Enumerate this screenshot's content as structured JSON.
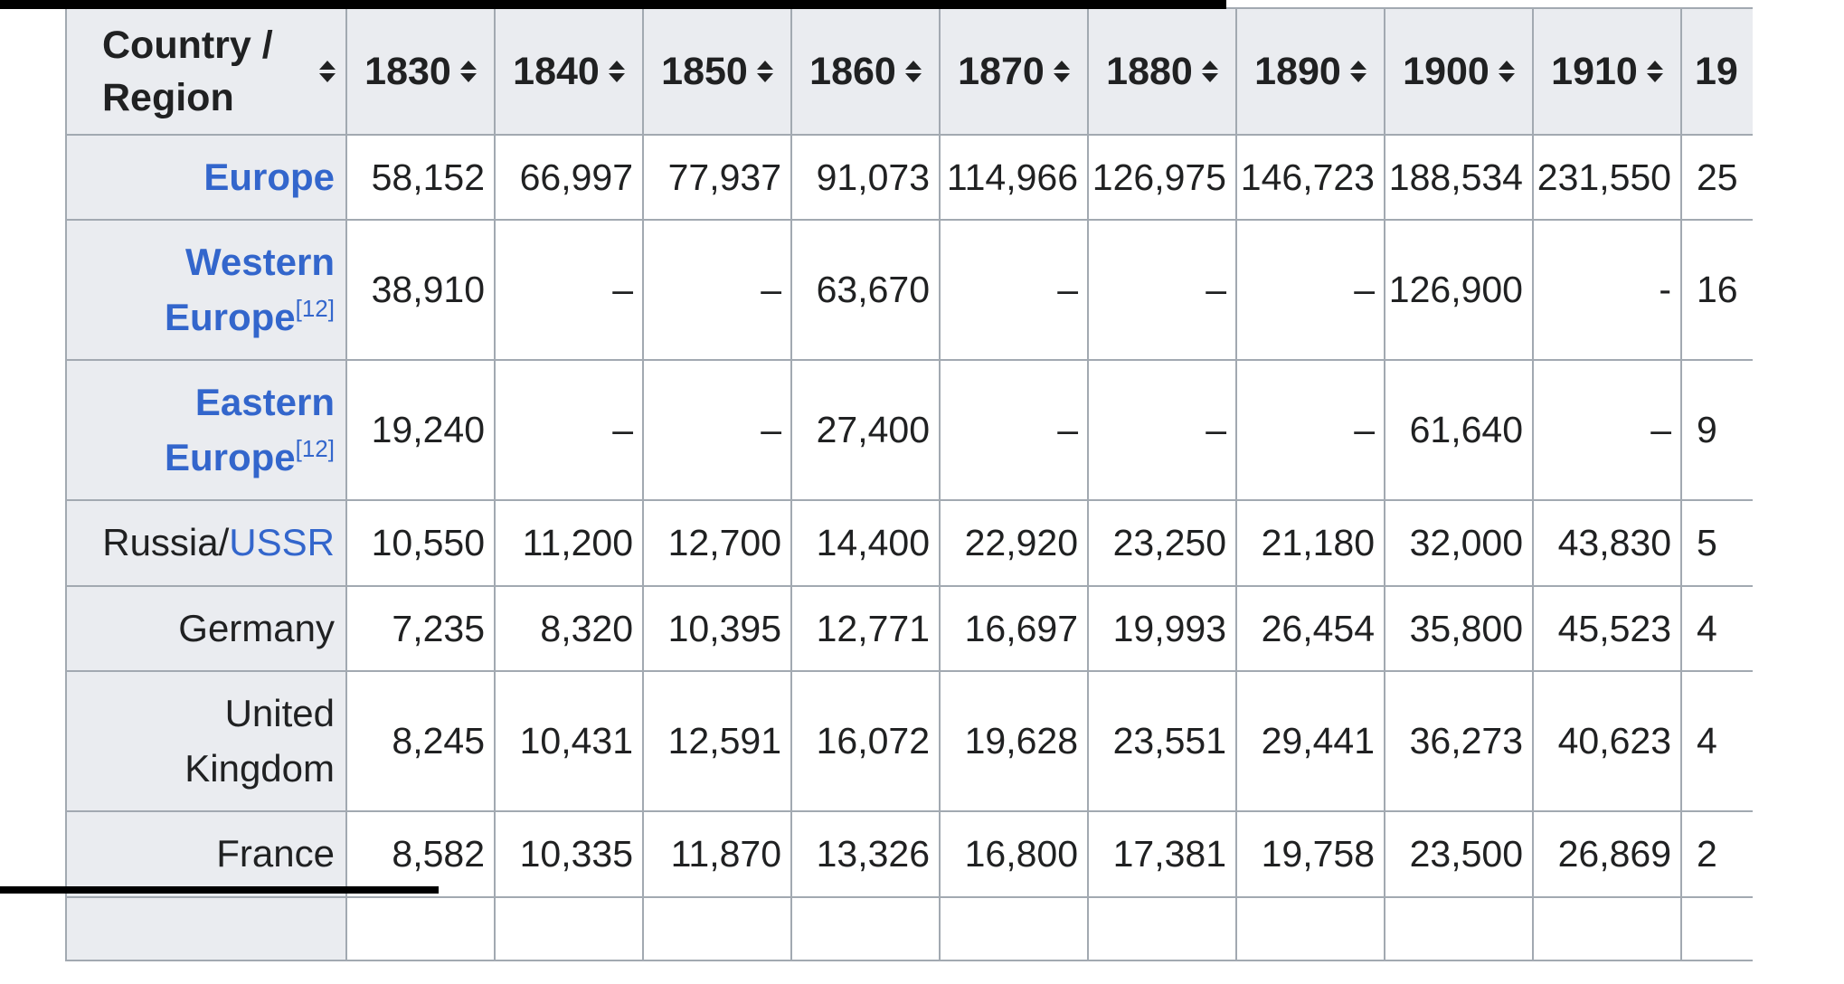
{
  "theme": {
    "header_bg": "#eaecf0",
    "border_color": "#a2a9b1",
    "text_color": "#202122",
    "link_color": "#3366cc",
    "artifact_bar_color": "#000000"
  },
  "table": {
    "header": {
      "country": "Country / Region",
      "years": [
        "1830",
        "1840",
        "1850",
        "1860",
        "1870",
        "1880",
        "1890",
        "1900",
        "1910",
        "19"
      ]
    },
    "rows": [
      {
        "label": {
          "prefix": "",
          "link": "Europe",
          "link_bold": true,
          "sup": ""
        },
        "values": [
          "58,152",
          "66,997",
          "77,937",
          "91,073",
          "114,966",
          "126,975",
          "146,723",
          "188,534",
          "231,550",
          "25"
        ]
      },
      {
        "label": {
          "prefix": "",
          "link": "Western Europe",
          "link_bold": true,
          "sup": "[12]"
        },
        "values": [
          "38,910",
          "–",
          "–",
          "63,670",
          "–",
          "–",
          "–",
          "126,900",
          "-",
          "16"
        ]
      },
      {
        "label": {
          "prefix": "",
          "link": "Eastern Europe",
          "link_bold": true,
          "sup": "[12]"
        },
        "values": [
          "19,240",
          "–",
          "–",
          "27,400",
          "–",
          "–",
          "–",
          "61,640",
          "–",
          "9"
        ]
      },
      {
        "label": {
          "prefix": "Russia/",
          "link": "USSR",
          "link_bold": false,
          "sup": ""
        },
        "values": [
          "10,550",
          "11,200",
          "12,700",
          "14,400",
          "22,920",
          "23,250",
          "21,180",
          "32,000",
          "43,830",
          "5"
        ]
      },
      {
        "label": {
          "prefix": "Germany",
          "link": "",
          "link_bold": false,
          "sup": ""
        },
        "values": [
          "7,235",
          "8,320",
          "10,395",
          "12,771",
          "16,697",
          "19,993",
          "26,454",
          "35,800",
          "45,523",
          "4"
        ]
      },
      {
        "label": {
          "prefix": "United Kingdom",
          "link": "",
          "link_bold": false,
          "sup": ""
        },
        "values": [
          "8,245",
          "10,431",
          "12,591",
          "16,072",
          "19,628",
          "23,551",
          "29,441",
          "36,273",
          "40,623",
          "4"
        ]
      },
      {
        "label": {
          "prefix": "France",
          "link": "",
          "link_bold": false,
          "sup": ""
        },
        "values": [
          "8,582",
          "10,335",
          "11,870",
          "13,326",
          "16,800",
          "17,381",
          "19,758",
          "23,500",
          "26,869",
          "2"
        ]
      }
    ]
  }
}
